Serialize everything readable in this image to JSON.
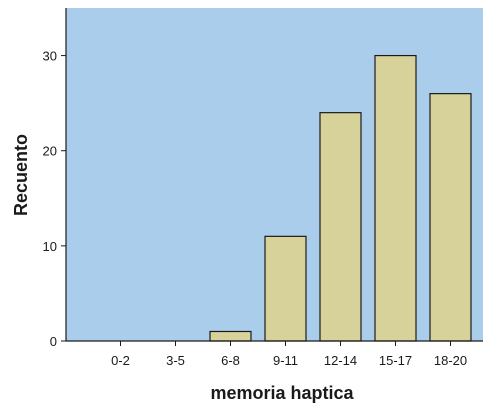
{
  "chart_data": {
    "type": "bar",
    "title": "",
    "xlabel": "memoria haptica",
    "ylabel": "Recuento",
    "categories": [
      "0-2",
      "3-5",
      "6-8",
      "9-11",
      "12-14",
      "15-17",
      "18-20"
    ],
    "values": [
      0,
      0,
      1,
      11,
      24,
      30,
      26
    ],
    "ylim": [
      0,
      35
    ],
    "yticks": [
      "0",
      "10",
      "20",
      "30"
    ],
    "grid": false,
    "legend": "none",
    "colors": {
      "plot_background": "#abcdec",
      "bar_fill": "#d6d29a",
      "bar_stroke": "#1a1a1a",
      "axis": "#1a1a1a"
    }
  }
}
